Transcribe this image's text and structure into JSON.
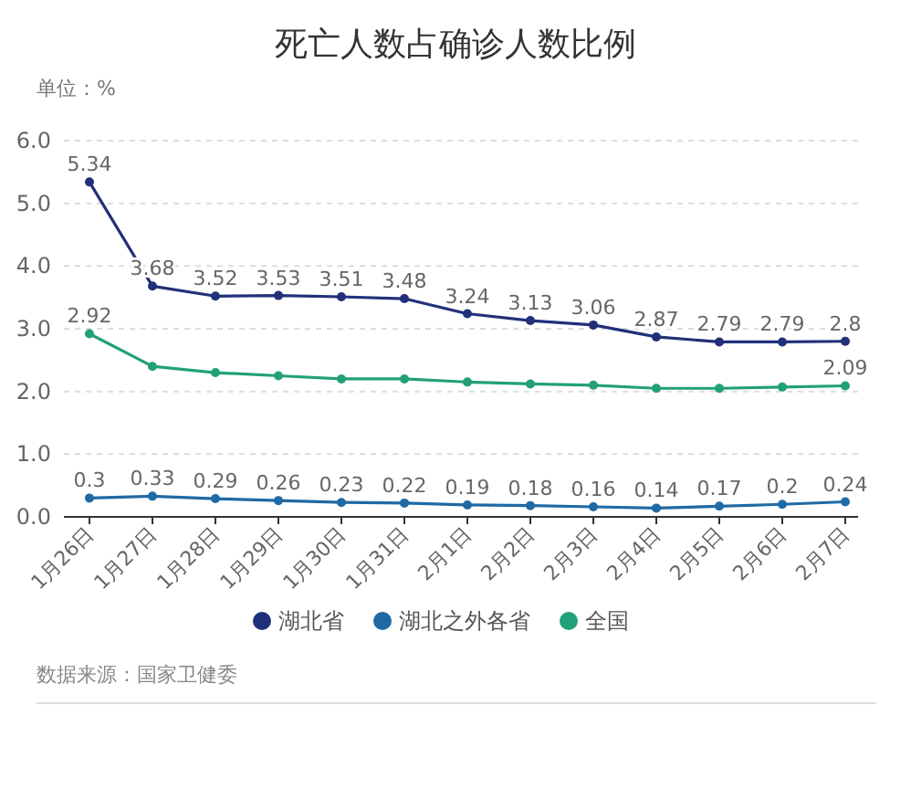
{
  "chart_data": {
    "type": "line",
    "title": "死亡人数占确诊人数比例",
    "ylabel": "单位：%",
    "categories": [
      "1月26日",
      "1月27日",
      "1月28日",
      "1月29日",
      "1月30日",
      "1月31日",
      "2月1日",
      "2月2日",
      "2月3日",
      "2月4日",
      "2月5日",
      "2月6日",
      "2月7日"
    ],
    "series": [
      {
        "name": "湖北省",
        "color": "#22307a",
        "values": [
          5.34,
          3.68,
          3.52,
          3.53,
          3.51,
          3.48,
          3.24,
          3.13,
          3.06,
          2.87,
          2.79,
          2.79,
          2.8
        ],
        "value_labels": [
          "5.34",
          "3.68",
          "3.52",
          "3.53",
          "3.51",
          "3.48",
          "3.24",
          "3.13",
          "3.06",
          "2.87",
          "2.79",
          "2.79",
          "2.8"
        ]
      },
      {
        "name": "湖北之外各省",
        "color": "#1f6aa5",
        "values": [
          0.3,
          0.33,
          0.29,
          0.26,
          0.23,
          0.22,
          0.19,
          0.18,
          0.16,
          0.14,
          0.17,
          0.2,
          0.24
        ],
        "value_labels": [
          "0.3",
          "0.33",
          "0.29",
          "0.26",
          "0.23",
          "0.22",
          "0.19",
          "0.18",
          "0.16",
          "0.14",
          "0.17",
          "0.2",
          "0.24"
        ]
      },
      {
        "name": "全国",
        "color": "#22a079",
        "values": [
          2.92,
          2.4,
          2.3,
          2.25,
          2.2,
          2.2,
          2.15,
          2.12,
          2.1,
          2.05,
          2.05,
          2.07,
          2.09
        ],
        "value_labels": [
          "2.92",
          null,
          null,
          null,
          null,
          null,
          null,
          null,
          null,
          null,
          null,
          null,
          "2.09"
        ]
      }
    ],
    "ylim": [
      0,
      6
    ],
    "yticks": [
      {
        "value": 0,
        "label": "0.0"
      },
      {
        "value": 1,
        "label": "1.0"
      },
      {
        "value": 2,
        "label": "2.0"
      },
      {
        "value": 3,
        "label": "3.0"
      },
      {
        "value": 4,
        "label": "4.0"
      },
      {
        "value": 5,
        "label": "5.0"
      },
      {
        "value": 6,
        "label": "6.0"
      }
    ],
    "grid": "y",
    "marker": "circle",
    "line_style": "solid",
    "legend": "bottom",
    "annotations": [
      "数据来源：国家卫健委"
    ]
  }
}
